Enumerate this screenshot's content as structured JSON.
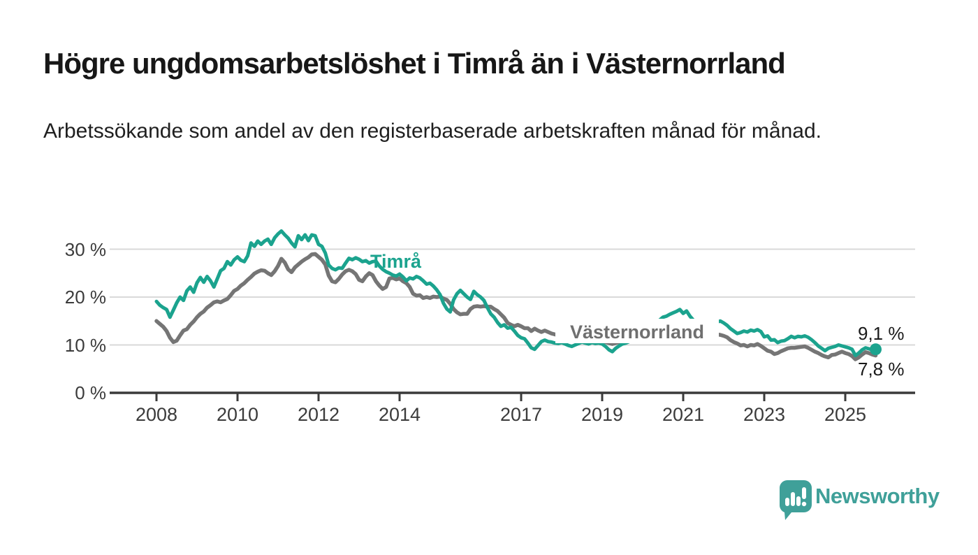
{
  "header": {
    "title": "Högre ungdomsarbetslöshet i Timrå än i Västernorrland",
    "subtitle": "Arbetssökande som andel av den registerbaserade arbetskraften månad för månad."
  },
  "chart_data": {
    "type": "line",
    "title": "Högre ungdomsarbetslöshet i Timrå än i Västernorrland",
    "x_start": "2008-01",
    "x_freq": "monthly",
    "x_tick_labels": [
      "2008",
      "2010",
      "2012",
      "2014",
      "2017",
      "2019",
      "2021",
      "2023",
      "2025"
    ],
    "y_tick_labels": [
      "30 %",
      "20 %",
      "10 %",
      "0 %"
    ],
    "ylim": [
      0,
      36
    ],
    "grid": "horizontal-at-10-20-30",
    "legend_position": "inline-labels-on-lines",
    "series": [
      {
        "name": "Timrå",
        "color": "#1ba38e",
        "inline_label": "Timrå",
        "end_label": "9,1 %",
        "end_value": 9.1,
        "values": [
          19.1,
          18.3,
          17.8,
          17.4,
          15.8,
          17.3,
          18.8,
          20.0,
          19.3,
          21.3,
          22.1,
          21.0,
          23.0,
          24.1,
          23.1,
          24.3,
          23.4,
          22.1,
          23.8,
          25.5,
          26.0,
          27.4,
          26.7,
          27.8,
          28.4,
          27.7,
          27.4,
          28.6,
          31.3,
          30.6,
          31.7,
          31.0,
          31.7,
          32.1,
          31.0,
          32.4,
          33.2,
          33.8,
          33.0,
          32.3,
          31.3,
          30.5,
          32.8,
          32.0,
          33.0,
          31.8,
          33.0,
          32.8,
          31.0,
          30.6,
          29.2,
          26.7,
          26.0,
          25.7,
          26.1,
          26.0,
          27.1,
          28.1,
          27.8,
          28.2,
          27.9,
          27.4,
          27.6,
          27.1,
          27.4,
          27.5,
          26.5,
          25.8,
          25.3,
          25.0,
          24.6,
          24.4,
          24.8,
          24.2,
          23.4,
          24.0,
          23.8,
          24.3,
          24.0,
          23.4,
          22.7,
          22.9,
          22.3,
          21.5,
          20.5,
          18.7,
          17.5,
          16.9,
          19.4,
          20.7,
          21.4,
          20.7,
          20.0,
          19.5,
          21.2,
          20.5,
          20.0,
          19.3,
          17.8,
          16.5,
          15.8,
          14.7,
          13.9,
          14.2,
          13.5,
          13.7,
          12.9,
          12.0,
          11.5,
          11.3,
          10.4,
          9.4,
          9.1,
          9.9,
          10.7,
          11.0,
          10.7,
          10.6,
          10.4,
          10.3,
          10.5,
          10.2,
          9.9,
          9.7,
          10.0,
          10.3,
          10.6,
          10.4,
          10.2,
          10.5,
          10.3,
          10.4,
          10.2,
          9.7,
          9.0,
          8.6,
          9.3,
          9.8,
          10.2,
          10.4,
          10.7,
          10.8,
          11.0,
          11.3,
          11.8,
          12.0,
          12.6,
          13.6,
          14.6,
          15.2,
          15.8,
          16.0,
          16.4,
          16.7,
          17.0,
          17.4,
          16.6,
          17.1,
          16.0,
          15.2,
          14.5,
          14.3,
          14.0,
          14.2,
          14.4,
          14.6,
          14.8,
          15.0,
          14.6,
          14.1,
          13.4,
          12.9,
          12.4,
          12.6,
          12.9,
          12.7,
          13.1,
          12.9,
          13.2,
          12.8,
          11.7,
          11.9,
          11.0,
          11.1,
          10.5,
          10.8,
          10.9,
          11.3,
          11.8,
          11.5,
          11.8,
          11.7,
          11.9,
          11.6,
          11.1,
          10.5,
          9.8,
          9.3,
          8.8,
          9.3,
          9.5,
          9.7,
          10.0,
          9.8,
          9.6,
          9.4,
          9.1,
          7.8,
          8.3,
          9.0,
          9.4,
          9.2,
          9.0,
          9.1
        ]
      },
      {
        "name": "Västernorrland",
        "color": "#757575",
        "inline_label": "Västernorrland",
        "end_label": "7,8 %",
        "end_value": 7.8,
        "values": [
          15.0,
          14.4,
          13.8,
          12.9,
          11.5,
          10.6,
          10.9,
          12.0,
          13.0,
          13.3,
          14.2,
          14.9,
          15.8,
          16.5,
          17.0,
          17.8,
          18.3,
          18.9,
          19.1,
          18.9,
          19.3,
          19.6,
          20.4,
          21.3,
          21.7,
          22.4,
          22.9,
          23.6,
          24.2,
          24.9,
          25.3,
          25.6,
          25.5,
          25.0,
          24.6,
          25.4,
          26.5,
          28.0,
          27.2,
          25.8,
          25.2,
          26.2,
          26.8,
          27.4,
          27.9,
          28.3,
          28.9,
          29.0,
          28.4,
          27.8,
          26.8,
          24.5,
          23.3,
          23.1,
          23.8,
          24.7,
          25.4,
          25.7,
          25.4,
          24.8,
          23.6,
          23.3,
          24.3,
          25.0,
          24.6,
          23.3,
          22.4,
          21.7,
          22.1,
          23.9,
          24.0,
          23.7,
          23.9,
          23.3,
          22.9,
          22.1,
          20.7,
          20.3,
          20.4,
          19.8,
          20.0,
          19.8,
          20.1,
          20.0,
          20.1,
          19.7,
          19.4,
          18.6,
          17.5,
          16.8,
          16.4,
          16.5,
          16.5,
          17.5,
          18.0,
          18.1,
          18.0,
          18.1,
          18.0,
          18.0,
          17.5,
          17.1,
          16.4,
          15.7,
          14.6,
          14.2,
          13.9,
          14.2,
          13.9,
          13.5,
          13.5,
          12.9,
          13.4,
          13.0,
          12.7,
          13.0,
          12.7,
          12.4,
          12.2,
          12.0,
          12.1,
          11.9,
          11.8,
          11.6,
          11.7,
          11.5,
          11.4,
          11.5,
          11.3,
          11.2,
          11.0,
          11.1,
          10.9,
          10.6,
          10.4,
          10.2,
          10.4,
          10.6,
          10.8,
          10.9,
          11.0,
          11.1,
          11.2,
          11.4,
          11.6,
          11.9,
          12.4,
          13.2,
          13.8,
          14.1,
          14.3,
          14.4,
          14.5,
          14.5,
          14.6,
          14.7,
          14.5,
          14.3,
          14.0,
          13.7,
          13.4,
          13.1,
          12.9,
          12.7,
          12.5,
          12.3,
          12.2,
          12.1,
          11.9,
          11.6,
          11.0,
          10.6,
          10.3,
          9.9,
          10.0,
          9.7,
          10.0,
          9.9,
          10.2,
          9.8,
          9.3,
          8.8,
          8.6,
          8.1,
          8.3,
          8.7,
          9.0,
          9.3,
          9.4,
          9.4,
          9.5,
          9.6,
          9.7,
          9.4,
          9.0,
          8.6,
          8.3,
          7.9,
          7.6,
          7.4,
          7.9,
          8.0,
          8.3,
          8.6,
          8.3,
          8.1,
          7.7,
          7.0,
          7.4,
          8.0,
          8.5,
          8.3,
          8.0,
          7.8
        ]
      }
    ],
    "colors": {
      "grid": "#d9d9d9",
      "axis": "#3a3a3a",
      "timra_line": "#1ba38e",
      "vasternorrland_line": "#757575",
      "vasternorrland_label": "#6f6f6f"
    }
  },
  "footer": {
    "brand": "Newsworthy",
    "brand_color": "#3fa099",
    "logo_icon": "bar-chart-speech-bubble-icon"
  }
}
